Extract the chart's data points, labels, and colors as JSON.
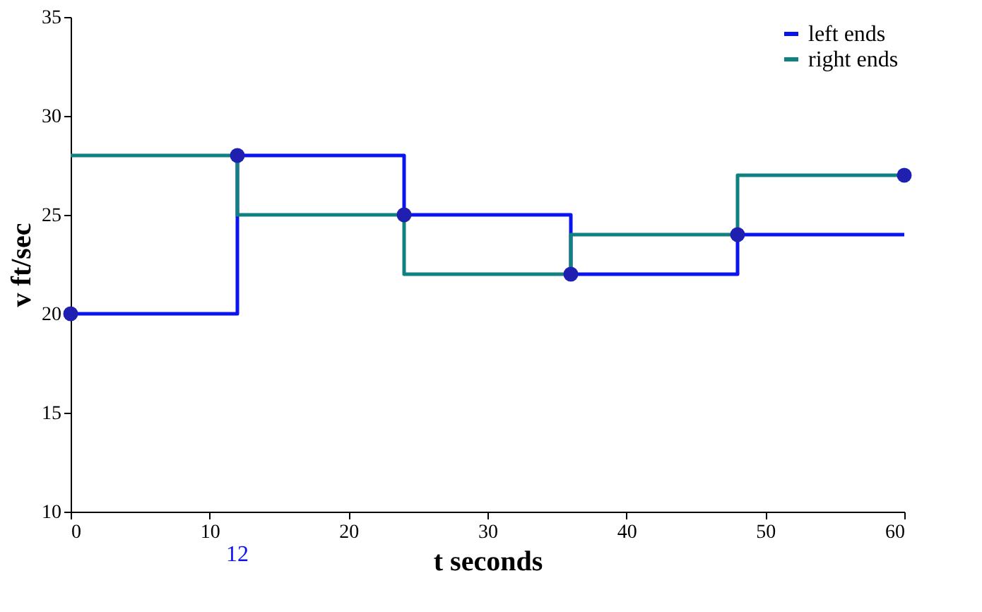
{
  "chart_data": {
    "type": "step",
    "xlabel": "t seconds",
    "ylabel": "v ft/sec",
    "x": [
      0,
      12,
      24,
      36,
      48,
      60
    ],
    "series": [
      {
        "type": "scatter",
        "color": "#1f1fb0",
        "marker": "circle",
        "values": [
          20,
          28,
          25,
          22,
          24,
          27
        ]
      },
      {
        "name": "left ends",
        "color": "#0a14f0",
        "values": [
          20,
          28,
          25,
          22,
          24,
          24
        ]
      },
      {
        "name": "right ends",
        "color": "#108080",
        "values": [
          28,
          25,
          22,
          24,
          27,
          27
        ]
      }
    ],
    "xlim": [
      0,
      60
    ],
    "xticks": [
      0,
      10,
      20,
      30,
      40,
      50,
      60
    ],
    "ylim": [
      10,
      35
    ],
    "yticks": [
      10,
      15,
      20,
      25,
      30,
      35
    ],
    "grid": false,
    "legend": "top right",
    "annotations": [
      "12"
    ]
  }
}
